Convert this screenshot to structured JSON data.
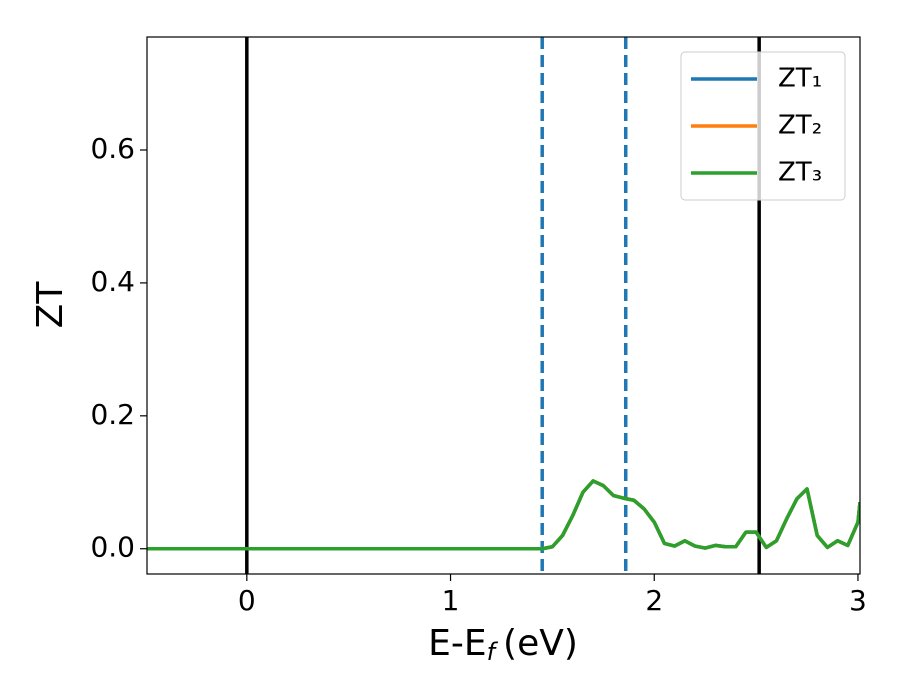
{
  "chart_data": {
    "type": "line",
    "y_label": "ZT",
    "x_label": {
      "main": "E-E",
      "sub": "f",
      "unit": "(eV)"
    },
    "x": [
      -0.49,
      1.4,
      1.45,
      1.5,
      1.55,
      1.6,
      1.65,
      1.7,
      1.75,
      1.8,
      1.85,
      1.9,
      1.95,
      2.0,
      2.05,
      2.1,
      2.15,
      2.2,
      2.25,
      2.3,
      2.35,
      2.4,
      2.45,
      2.5,
      2.55,
      2.6,
      2.65,
      2.7,
      2.75,
      2.8,
      2.85,
      2.9,
      2.95,
      3.0,
      3.01
    ],
    "series": [
      {
        "name": "ZT₁",
        "color": "#1f77b4",
        "values": [
          0,
          0,
          0,
          0.003,
          0.02,
          0.05,
          0.085,
          0.102,
          0.095,
          0.08,
          0.076,
          0.073,
          0.06,
          0.04,
          0.008,
          0.004,
          0.012,
          0.004,
          0.001,
          0.005,
          0.003,
          0.003,
          0.025,
          0.025,
          0.002,
          0.012,
          0.045,
          0.075,
          0.09,
          0.02,
          0.002,
          0.012,
          0.005,
          0.04,
          0.07
        ]
      },
      {
        "name": "ZT₂",
        "color": "#ff7f0e",
        "values": [
          0,
          0,
          0,
          0.003,
          0.02,
          0.05,
          0.085,
          0.102,
          0.095,
          0.08,
          0.076,
          0.073,
          0.06,
          0.04,
          0.008,
          0.004,
          0.012,
          0.004,
          0.001,
          0.005,
          0.003,
          0.003,
          0.025,
          0.025,
          0.002,
          0.012,
          0.045,
          0.075,
          0.09,
          0.02,
          0.002,
          0.012,
          0.005,
          0.04,
          0.07
        ]
      },
      {
        "name": "ZT₃",
        "color": "#2ca02c",
        "values": [
          0,
          0,
          0,
          0.003,
          0.02,
          0.05,
          0.085,
          0.102,
          0.095,
          0.08,
          0.076,
          0.073,
          0.06,
          0.04,
          0.008,
          0.004,
          0.012,
          0.004,
          0.001,
          0.005,
          0.003,
          0.003,
          0.025,
          0.025,
          0.002,
          0.012,
          0.045,
          0.075,
          0.09,
          0.02,
          0.002,
          0.012,
          0.005,
          0.04,
          0.07
        ]
      }
    ],
    "vlines": [
      {
        "x": 0,
        "color": "#000000",
        "style": "solid"
      },
      {
        "x": 1.45,
        "color": "#1f77b4",
        "style": "dashed"
      },
      {
        "x": 1.86,
        "color": "#1f77b4",
        "style": "dashed"
      },
      {
        "x": 2.515,
        "color": "#000000",
        "style": "solid"
      }
    ],
    "xlim": [
      -0.49,
      3.01
    ],
    "ylim": [
      -0.038,
      0.77
    ],
    "xticks": [
      0,
      1,
      2,
      3
    ],
    "yticks": [
      {
        "value": 0,
        "label": "0.0"
      },
      0.2,
      0.4,
      0.6
    ],
    "grid": false,
    "legend": "upper right"
  }
}
